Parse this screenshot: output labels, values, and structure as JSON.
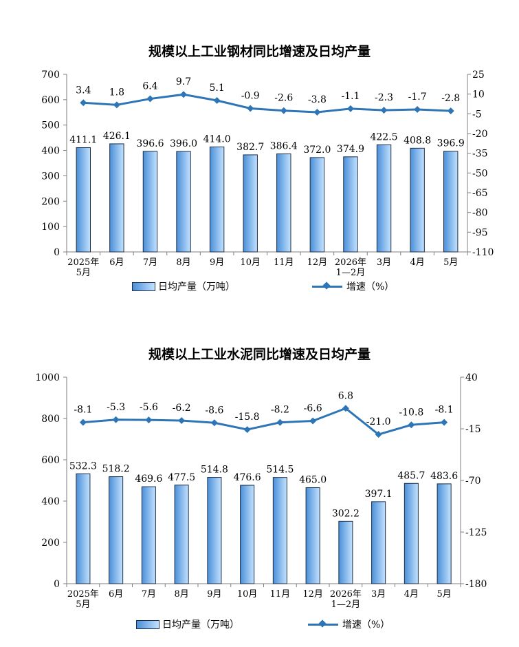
{
  "chart_data": [
    {
      "type": "bar+line",
      "title": "规模以上工业钢材同比增速及日均产量",
      "categories": [
        "2025年\n5月",
        "6月",
        "7月",
        "8月",
        "9月",
        "10月",
        "11月",
        "12月",
        "2026年\n1—2月",
        "3月",
        "4月",
        "5月"
      ],
      "series": [
        {
          "name": "日均产量（万吨）",
          "kind": "bar",
          "axis": "left",
          "values": [
            411.1,
            426.1,
            396.6,
            396.0,
            414.0,
            382.7,
            386.4,
            372.0,
            374.9,
            422.5,
            408.8,
            396.9
          ]
        },
        {
          "name": "增速（%）",
          "kind": "line",
          "axis": "right",
          "values": [
            3.4,
            1.8,
            6.4,
            9.7,
            5.1,
            -0.9,
            -2.6,
            -3.8,
            -1.1,
            -2.3,
            -1.7,
            -2.8
          ]
        }
      ],
      "ylim_left": [
        0,
        700
      ],
      "yticks_left": [
        0,
        100,
        200,
        300,
        400,
        500,
        600,
        700
      ],
      "ylim_right": [
        -110,
        25
      ],
      "yticks_right": [
        25,
        10,
        -5,
        -20,
        -35,
        -50,
        -65,
        -80,
        -95,
        -110
      ],
      "bar_labels": [
        "411.1",
        "426.1",
        "396.6",
        "396.0",
        "414.0",
        "382.7",
        "386.4",
        "372.0",
        "374.9",
        "422.5",
        "408.8",
        "396.9"
      ],
      "line_labels": [
        "3.4",
        "1.8",
        "6.4",
        "9.7",
        "5.1",
        "-0.9",
        "-2.6",
        "-3.8",
        "-1.1",
        "-2.3",
        "-1.7",
        "-2.8"
      ],
      "grid": false,
      "legend": "bottom"
    },
    {
      "type": "bar+line",
      "title": "规模以上工业水泥同比增速及日均产量",
      "categories": [
        "2025年\n5月",
        "6月",
        "7月",
        "8月",
        "9月",
        "10月",
        "11月",
        "12月",
        "2026年\n1—2月",
        "3月",
        "4月",
        "5月"
      ],
      "series": [
        {
          "name": "日均产量（万吨）",
          "kind": "bar",
          "axis": "left",
          "values": [
            532.3,
            518.2,
            469.6,
            477.5,
            514.8,
            476.6,
            514.5,
            465.0,
            302.2,
            397.1,
            485.7,
            483.6
          ]
        },
        {
          "name": "增速（%）",
          "kind": "line",
          "axis": "right",
          "values": [
            -8.1,
            -5.3,
            -5.6,
            -6.2,
            -8.6,
            -15.8,
            -8.2,
            -6.6,
            6.8,
            -21.0,
            -10.8,
            -8.1
          ]
        }
      ],
      "ylim_left": [
        0,
        1000
      ],
      "yticks_left": [
        0,
        200,
        400,
        600,
        800,
        1000
      ],
      "ylim_right": [
        -180,
        40
      ],
      "yticks_right": [
        40,
        -15,
        -70,
        -125,
        -180
      ],
      "bar_labels": [
        "532.3",
        "518.2",
        "469.6",
        "477.5",
        "514.8",
        "476.6",
        "514.5",
        "465.0",
        "302.2",
        "397.1",
        "485.7",
        "483.6"
      ],
      "line_labels": [
        "-8.1",
        "-5.3",
        "-5.6",
        "-6.2",
        "-8.6",
        "-15.8",
        "-8.2",
        "-6.6",
        "6.8",
        "-21.0",
        "-10.8",
        "-8.1"
      ],
      "grid": false,
      "legend": "bottom"
    }
  ],
  "colors": {
    "bar_dark": "#4a8fd8",
    "bar_light": "#c3e2ff",
    "bar_border": "#1f2d44",
    "line": "#2e75b6",
    "axis": "#7f7f7f"
  }
}
